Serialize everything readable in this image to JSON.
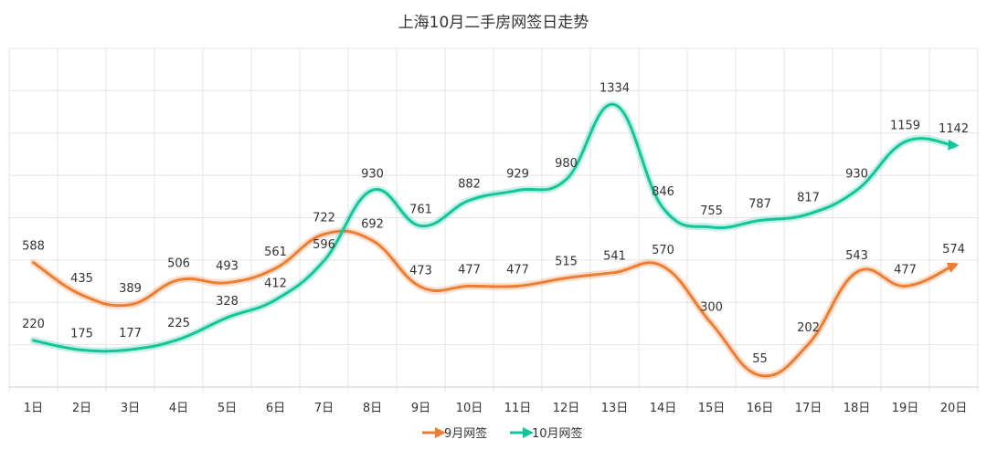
{
  "chart_data": {
    "type": "line",
    "title": "上海10月二手房网签日走势",
    "categories": [
      "1日",
      "2日",
      "3日",
      "4日",
      "5日",
      "6日",
      "7日",
      "8日",
      "9日",
      "10日",
      "11日",
      "12日",
      "13日",
      "14日",
      "15日",
      "16日",
      "17日",
      "18日",
      "19日",
      "20日"
    ],
    "series": [
      {
        "name": "9月网签",
        "color": "#ED7D31",
        "values": [
          588,
          435,
          389,
          506,
          493,
          561,
          722,
          692,
          473,
          477,
          477,
          515,
          541,
          570,
          300,
          55,
          202,
          543,
          477,
          574
        ]
      },
      {
        "name": "10月网签",
        "color": "#13C59A",
        "values": [
          220,
          175,
          177,
          225,
          328,
          412,
          596,
          930,
          761,
          882,
          929,
          980,
          1334,
          846,
          755,
          787,
          817,
          930,
          1159,
          1142
        ]
      }
    ],
    "ylim": [
      0,
      1600
    ],
    "ytick_step": 200,
    "y_tick_labels_shown": false,
    "grid": true,
    "smooth": true,
    "data_labels": true,
    "legend_position": "bottom"
  }
}
